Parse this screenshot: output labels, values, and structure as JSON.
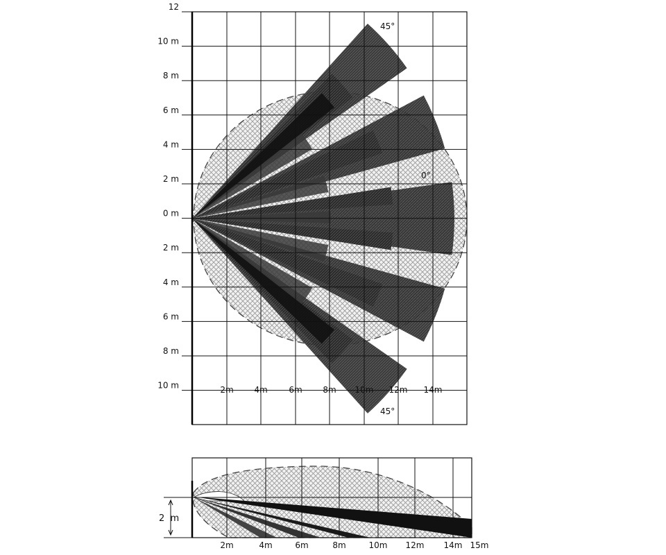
{
  "top_view": {
    "y_labels": [
      "12",
      "10 m",
      "8 m",
      "6 m",
      "4 m",
      "2 m",
      "0 m",
      "2 m",
      "4 m",
      "6 m",
      "8 m",
      "10 m"
    ],
    "x_labels": [
      "2m",
      "4m",
      "6m",
      "8m",
      "10m",
      "12m",
      "14m"
    ],
    "angle_labels": {
      "top": "45°",
      "center": "0°",
      "bottom": "45°"
    }
  },
  "side_view": {
    "x_labels": [
      "2m",
      "4m",
      "6m",
      "8m",
      "10m",
      "12m",
      "14m",
      "15m"
    ],
    "height_label": "2  m"
  },
  "colors": {
    "beam": "#3a3a3a",
    "beam_dense": "#111111",
    "hatch": "#9a9a9a",
    "grid": "#111111"
  }
}
